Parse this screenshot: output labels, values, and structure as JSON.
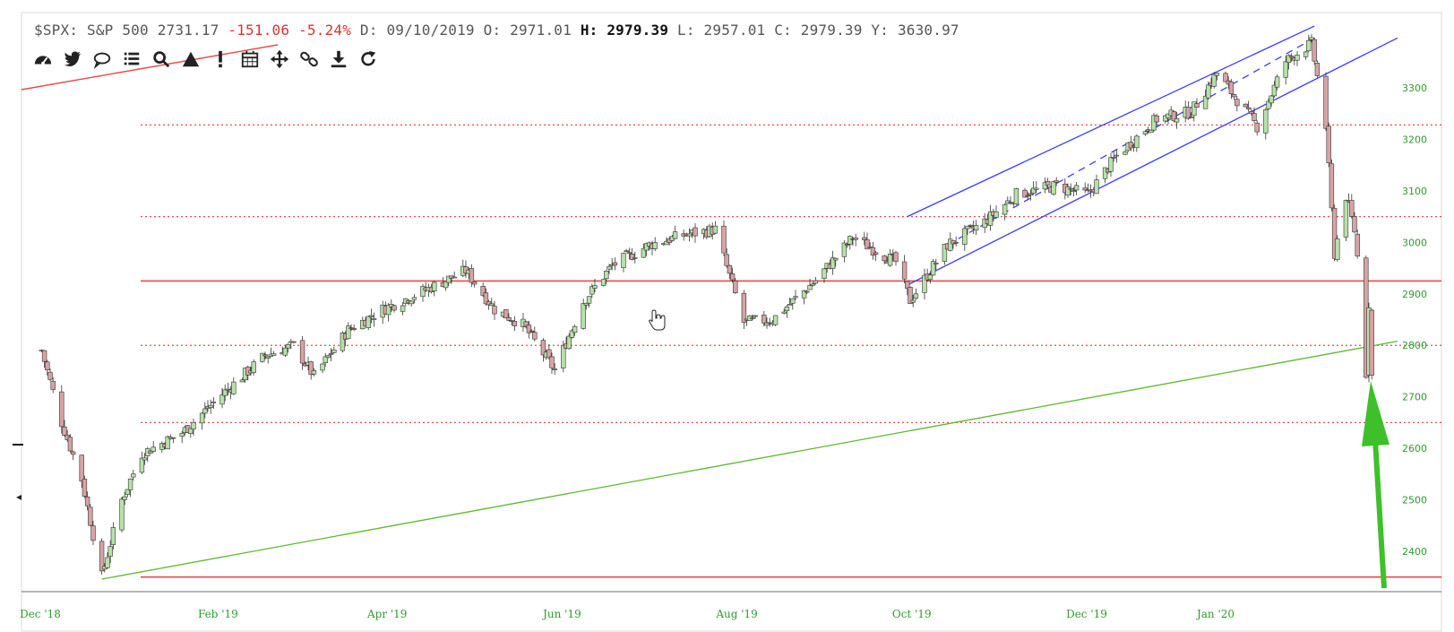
{
  "infobar": {
    "symbol": "$SPX:",
    "name": "S&P 500",
    "last": "2731.17",
    "change": "-151.06",
    "change_pct": "-5.24%",
    "date_label": "D:",
    "date": "09/10/2019",
    "open_label": "O:",
    "open": "2971.01",
    "high_label": "H:",
    "high": "2979.39",
    "low_label": "L:",
    "low": "2957.01",
    "close_label": "C:",
    "close": "2979.39",
    "y_label": "Y:",
    "y": "3630.97"
  },
  "toolbar": {
    "icons": [
      "dashboard-icon",
      "twitter-icon",
      "comment-icon",
      "list-icon",
      "zoom-icon",
      "triangle-icon",
      "alert-icon",
      "calendar-icon",
      "move-icon",
      "link-icon",
      "download-icon",
      "refresh-icon"
    ]
  },
  "colors": {
    "up_candle": "#b6e2a8",
    "down_candle": "#d9a3a3",
    "support_line": "#e84a4a",
    "trend_line": "#5cb82e",
    "channel": "#3b3bff",
    "arrow": "#3ec02a",
    "axis_text": "#2f9a2f"
  },
  "chart_data": {
    "type": "candlestick",
    "x_tick_labels": [
      "Dec '18",
      "Feb '19",
      "Apr '19",
      "Jun '19",
      "Aug '19",
      "Oct '19",
      "Dec '19",
      "Jan '20"
    ],
    "y_tick_labels": [
      "3300",
      "3200",
      "3100",
      "3000",
      "2900",
      "2800",
      "2700",
      "2600",
      "2500",
      "2400"
    ],
    "ylim": [
      2340,
      3400
    ],
    "xlim": [
      "2018-12-01",
      "2020-03-20"
    ],
    "grid": false,
    "close_path": [
      [
        "2018-12-03",
        2790
      ],
      [
        "2018-12-10",
        2650
      ],
      [
        "2018-12-17",
        2540
      ],
      [
        "2018-12-24",
        2351
      ],
      [
        "2018-12-31",
        2500
      ],
      [
        "2019-01-07",
        2590
      ],
      [
        "2019-01-21",
        2630
      ],
      [
        "2019-02-04",
        2705
      ],
      [
        "2019-02-19",
        2780
      ],
      [
        "2019-03-01",
        2800
      ],
      [
        "2019-03-08",
        2740
      ],
      [
        "2019-03-20",
        2830
      ],
      [
        "2019-04-01",
        2870
      ],
      [
        "2019-04-15",
        2905
      ],
      [
        "2019-04-30",
        2945
      ],
      [
        "2019-05-10",
        2870
      ],
      [
        "2019-05-20",
        2840
      ],
      [
        "2019-05-31",
        2752
      ],
      [
        "2019-06-10",
        2885
      ],
      [
        "2019-06-20",
        2955
      ],
      [
        "2019-07-03",
        2995
      ],
      [
        "2019-07-15",
        3014
      ],
      [
        "2019-07-26",
        3025
      ],
      [
        "2019-08-05",
        2845
      ],
      [
        "2019-08-15",
        2850
      ],
      [
        "2019-08-30",
        2926
      ],
      [
        "2019-09-12",
        3009
      ],
      [
        "2019-09-27",
        2962
      ],
      [
        "2019-10-02",
        2887
      ],
      [
        "2019-10-15",
        2995
      ],
      [
        "2019-10-28",
        3040
      ],
      [
        "2019-11-08",
        3093
      ],
      [
        "2019-11-22",
        3110
      ],
      [
        "2019-12-03",
        3093
      ],
      [
        "2019-12-13",
        3168
      ],
      [
        "2019-12-27",
        3240
      ],
      [
        "2020-01-08",
        3253
      ],
      [
        "2020-01-17",
        3329
      ],
      [
        "2020-01-31",
        3225
      ],
      [
        "2020-02-10",
        3352
      ],
      [
        "2020-02-19",
        3386
      ],
      [
        "2020-02-24",
        3225
      ],
      [
        "2020-02-27",
        2978
      ],
      [
        "2020-03-02",
        3090
      ],
      [
        "2020-03-05",
        3023
      ],
      [
        "2020-03-06",
        2972
      ],
      [
        "2020-03-09",
        2746
      ],
      [
        "2020-03-10",
        2882
      ],
      [
        "2020-03-11",
        2741
      ]
    ],
    "horizontal_levels": [
      {
        "value": 3228,
        "style": "dotted"
      },
      {
        "value": 3050,
        "style": "dotted"
      },
      {
        "value": 2925,
        "style": "solid"
      },
      {
        "value": 2800,
        "style": "dotted"
      },
      {
        "value": 2650,
        "style": "dotted"
      },
      {
        "value": 2350,
        "style": "solid"
      }
    ],
    "trendlines": [
      {
        "kind": "green-support",
        "from": [
          "2018-12-24",
          2346
        ],
        "to": [
          "2020-03-20",
          2808
        ]
      },
      {
        "kind": "channel-upper",
        "from": [
          "2019-10-01",
          3050
        ],
        "to": [
          "2020-02-20",
          3420
        ]
      },
      {
        "kind": "channel-lower",
        "from": [
          "2019-10-01",
          2917
        ],
        "to": [
          "2020-03-20",
          3397
        ]
      },
      {
        "kind": "channel-mid",
        "from": [
          "2019-10-15",
          2995
        ],
        "to": [
          "2020-02-20",
          3397
        ]
      }
    ]
  }
}
